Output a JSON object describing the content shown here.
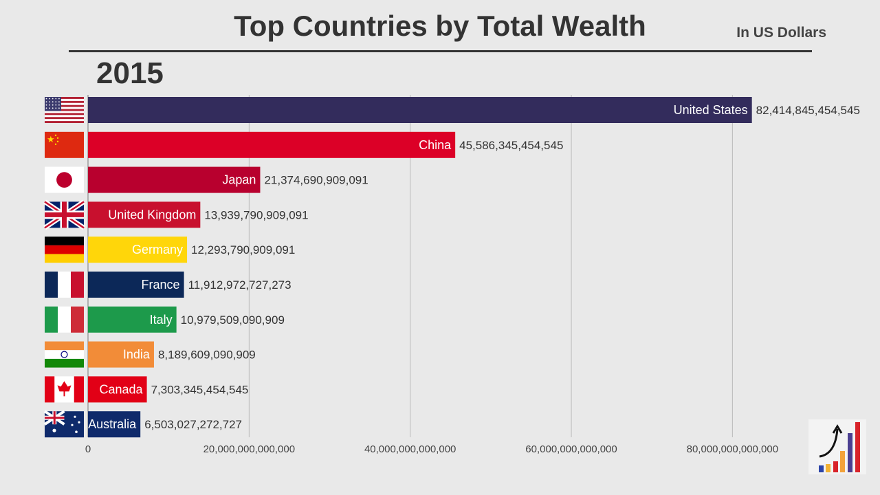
{
  "header": {
    "title": "Top Countries by Total Wealth",
    "unit": "In US Dollars",
    "year": "2015"
  },
  "chart_data": {
    "type": "bar",
    "orientation": "horizontal",
    "title": "Top Countries by Total Wealth",
    "subtitle": "In US Dollars",
    "period": "2015",
    "categories": [
      "United States",
      "China",
      "Japan",
      "United Kingdom",
      "Germany",
      "France",
      "Italy",
      "India",
      "Canada",
      "Australia"
    ],
    "values": [
      82414845454545,
      45586345454545,
      21374690909091,
      13939790909091,
      12293790909091,
      11912972727273,
      10979509090909,
      8189609090909,
      7303345454545,
      6503027272727
    ],
    "value_labels": [
      "82,414,845,454,545",
      "45,586,345,454,545",
      "21,374,690,909,091",
      "13,939,790,909,091",
      "12,293,790,909,091",
      "11,912,972,727,273",
      "10,979,509,090,909",
      "8,189,609,090,909",
      "7,303,345,454,545",
      "6,503,027,272,727"
    ],
    "bar_colors": [
      "#332c5c",
      "#dc0027",
      "#b8002e",
      "#c8102e",
      "#ffd60a",
      "#0c2858",
      "#1d9a4b",
      "#f28c38",
      "#e20016",
      "#0f2a6b"
    ],
    "label_colors": [
      "#ffffff",
      "#ffffff",
      "#ffffff",
      "#ffffff",
      "#ffffff",
      "#ffffff",
      "#ffffff",
      "#ffffff",
      "#ffffff",
      "#ffffff"
    ],
    "flags": [
      "us-flag",
      "china-flag",
      "japan-flag",
      "uk-flag",
      "germany-flag",
      "france-flag",
      "italy-flag",
      "india-flag",
      "canada-flag",
      "australia-flag"
    ],
    "xlim": [
      0,
      99000000000000
    ],
    "xticks": [
      0,
      20000000000000,
      40000000000000,
      60000000000000,
      80000000000000
    ],
    "xtick_labels": [
      "0",
      "20,000,000,000,000",
      "40,000,000,000,000",
      "60,000,000,000,000",
      "80,000,000,000,000"
    ],
    "grid": true,
    "legend": "none"
  }
}
